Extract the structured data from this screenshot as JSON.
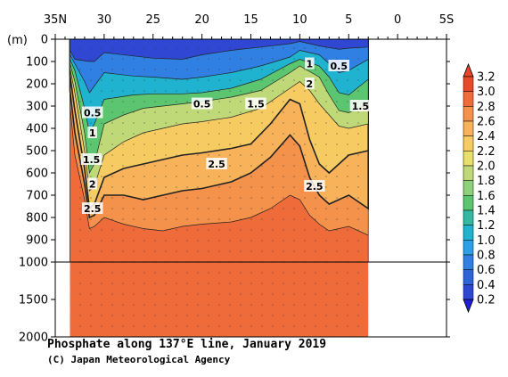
{
  "chart_data": {
    "type": "heatmap",
    "title": "Phosphate along 137°E line, January 2019",
    "credit": "(C) Japan Meteorological Agency",
    "x_ticks": [
      {
        "lat": 35,
        "label": "35N"
      },
      {
        "lat": 30,
        "label": "30"
      },
      {
        "lat": 25,
        "label": "25"
      },
      {
        "lat": 20,
        "label": "20"
      },
      {
        "lat": 15,
        "label": "15"
      },
      {
        "lat": 10,
        "label": "10"
      },
      {
        "lat": 5,
        "label": "5"
      },
      {
        "lat": 0,
        "label": "0"
      },
      {
        "lat": -5,
        "label": "5S"
      }
    ],
    "x_range": [
      35,
      -5
    ],
    "data_lat_range": [
      33.5,
      3.0
    ],
    "y_unit_label": "(m)",
    "y_ticks_upper": [
      0,
      100,
      200,
      300,
      400,
      500,
      600,
      700,
      800,
      900,
      1000
    ],
    "y_ticks_lower": [
      1500,
      2000
    ],
    "y_range": [
      0,
      2000
    ],
    "colorbar": {
      "levels": [
        "3.2",
        "3.0",
        "2.8",
        "2.6",
        "2.4",
        "2.2",
        "2.0",
        "1.8",
        "1.6",
        "1.4",
        "1.2",
        "1.0",
        "0.8",
        "0.6",
        "0.4",
        "0.2"
      ],
      "colors": [
        "#e64a2a",
        "#ef6b3a",
        "#f4924c",
        "#f7b25a",
        "#f6cc62",
        "#e9df6c",
        "#bfd978",
        "#8fd07a",
        "#5cc56f",
        "#35b8a0",
        "#1fb3cf",
        "#2ba0e6",
        "#2f80e2",
        "#2f63d8",
        "#2f47d2",
        "#2a2fd0"
      ],
      "under_color": "#1e1ed8",
      "over_color": "#e8452a"
    },
    "depth_bands_upper": [
      {
        "upto": 0.4,
        "profile": [
          [
            33.5,
            50
          ],
          [
            33,
            90
          ],
          [
            31.5,
            100
          ],
          [
            31,
            100
          ],
          [
            30,
            60
          ],
          [
            27,
            75
          ],
          [
            25,
            85
          ],
          [
            22,
            90
          ],
          [
            20,
            70
          ],
          [
            17,
            50
          ],
          [
            14,
            35
          ],
          [
            11,
            20
          ],
          [
            10,
            10
          ],
          [
            8,
            30
          ],
          [
            6,
            45
          ],
          [
            5,
            40
          ],
          [
            3,
            35
          ]
        ]
      },
      {
        "upto": 0.8,
        "profile": [
          [
            33.5,
            70
          ],
          [
            33,
            110
          ],
          [
            32,
            190
          ],
          [
            31.5,
            240
          ],
          [
            31,
            210
          ],
          [
            30,
            150
          ],
          [
            27,
            165
          ],
          [
            25,
            170
          ],
          [
            22,
            180
          ],
          [
            20,
            170
          ],
          [
            17,
            150
          ],
          [
            14,
            120
          ],
          [
            11,
            80
          ],
          [
            10,
            50
          ],
          [
            8,
            70
          ],
          [
            7,
            110
          ],
          [
            6,
            150
          ],
          [
            5,
            140
          ],
          [
            3,
            90
          ]
        ]
      },
      {
        "upto": 1.2,
        "profile": [
          [
            33.5,
            90
          ],
          [
            33,
            140
          ],
          [
            32,
            310
          ],
          [
            31.5,
            420
          ],
          [
            31,
            380
          ],
          [
            30,
            270
          ],
          [
            27,
            250
          ],
          [
            25,
            245
          ],
          [
            22,
            245
          ],
          [
            20,
            240
          ],
          [
            17,
            220
          ],
          [
            14,
            180
          ],
          [
            11,
            110
          ],
          [
            10,
            90
          ],
          [
            8,
            120
          ],
          [
            7,
            170
          ],
          [
            6,
            240
          ],
          [
            5,
            250
          ],
          [
            3,
            180
          ]
        ]
      },
      {
        "upto": 1.6,
        "profile": [
          [
            33.5,
            110
          ],
          [
            33,
            190
          ],
          [
            32,
            420
          ],
          [
            31.5,
            600
          ],
          [
            31,
            560
          ],
          [
            30,
            380
          ],
          [
            28,
            340
          ],
          [
            26,
            310
          ],
          [
            24,
            300
          ],
          [
            22,
            290
          ],
          [
            20,
            280
          ],
          [
            17,
            260
          ],
          [
            14,
            230
          ],
          [
            11,
            150
          ],
          [
            10,
            120
          ],
          [
            8,
            170
          ],
          [
            7,
            250
          ],
          [
            6,
            320
          ],
          [
            5,
            330
          ],
          [
            3,
            290
          ]
        ]
      },
      {
        "upto": 2.0,
        "profile": [
          [
            33.5,
            130
          ],
          [
            33,
            240
          ],
          [
            32,
            500
          ],
          [
            31.5,
            680
          ],
          [
            31,
            660
          ],
          [
            30,
            520
          ],
          [
            28,
            460
          ],
          [
            26,
            420
          ],
          [
            24,
            400
          ],
          [
            22,
            380
          ],
          [
            20,
            370
          ],
          [
            17,
            350
          ],
          [
            14,
            310
          ],
          [
            11,
            220
          ],
          [
            10,
            190
          ],
          [
            9,
            230
          ],
          [
            8,
            290
          ],
          [
            7,
            340
          ],
          [
            6,
            390
          ],
          [
            5,
            400
          ],
          [
            3,
            380
          ]
        ]
      },
      {
        "upto": 2.4,
        "profile": [
          [
            33.5,
            160
          ],
          [
            33,
            320
          ],
          [
            32,
            580
          ],
          [
            31.5,
            760
          ],
          [
            31,
            740
          ],
          [
            30,
            620
          ],
          [
            28,
            580
          ],
          [
            26,
            560
          ],
          [
            24,
            540
          ],
          [
            22,
            520
          ],
          [
            20,
            510
          ],
          [
            17,
            490
          ],
          [
            15,
            470
          ],
          [
            13,
            380
          ],
          [
            11,
            270
          ],
          [
            10,
            290
          ],
          [
            9,
            450
          ],
          [
            8,
            560
          ],
          [
            7,
            600
          ],
          [
            6,
            560
          ],
          [
            5,
            520
          ],
          [
            3,
            500
          ]
        ]
      },
      {
        "upto": 2.6,
        "profile": [
          [
            33.5,
            230
          ],
          [
            33,
            420
          ],
          [
            32,
            650
          ],
          [
            31.5,
            800
          ],
          [
            31,
            790
          ],
          [
            30,
            700
          ],
          [
            28,
            700
          ],
          [
            26,
            720
          ],
          [
            24,
            700
          ],
          [
            22,
            680
          ],
          [
            20,
            670
          ],
          [
            17,
            640
          ],
          [
            15,
            600
          ],
          [
            13,
            530
          ],
          [
            11,
            430
          ],
          [
            10,
            480
          ],
          [
            9,
            620
          ],
          [
            8,
            700
          ],
          [
            7,
            740
          ],
          [
            6,
            720
          ],
          [
            5,
            700
          ],
          [
            3,
            760
          ]
        ]
      },
      {
        "upto": 2.8,
        "profile": [
          [
            33.5,
            300
          ],
          [
            33,
            520
          ],
          [
            32,
            720
          ],
          [
            31.5,
            850
          ],
          [
            31,
            840
          ],
          [
            30,
            800
          ],
          [
            28,
            830
          ],
          [
            26,
            850
          ],
          [
            24,
            860
          ],
          [
            22,
            840
          ],
          [
            20,
            830
          ],
          [
            17,
            820
          ],
          [
            15,
            800
          ],
          [
            13,
            760
          ],
          [
            11,
            700
          ],
          [
            10,
            720
          ],
          [
            9,
            790
          ],
          [
            8,
            830
          ],
          [
            7,
            860
          ],
          [
            6,
            850
          ],
          [
            5,
            840
          ],
          [
            3,
            880
          ]
        ]
      },
      {
        "upto": 3.0,
        "profile": [
          [
            33.5,
            1000
          ],
          [
            3,
            1000
          ]
        ]
      }
    ],
    "contour_labels": [
      {
        "text": "0.5",
        "lat": 31.2,
        "depth": 330
      },
      {
        "text": "1",
        "lat": 31.2,
        "depth": 420
      },
      {
        "text": "1.5",
        "lat": 31.3,
        "depth": 540
      },
      {
        "text": "2",
        "lat": 31.2,
        "depth": 650
      },
      {
        "text": "2.5",
        "lat": 31.2,
        "depth": 760
      },
      {
        "text": "0.5",
        "lat": 20.0,
        "depth": 290
      },
      {
        "text": "1.5",
        "lat": 14.5,
        "depth": 290
      },
      {
        "text": "2.5",
        "lat": 18.5,
        "depth": 560
      },
      {
        "text": "1",
        "lat": 9.0,
        "depth": 110
      },
      {
        "text": "2",
        "lat": 9.0,
        "depth": 200
      },
      {
        "text": "0.5",
        "lat": 6.0,
        "depth": 120
      },
      {
        "text": "1.5",
        "lat": 3.8,
        "depth": 300
      },
      {
        "text": "2.5",
        "lat": 8.5,
        "depth": 660
      }
    ]
  }
}
